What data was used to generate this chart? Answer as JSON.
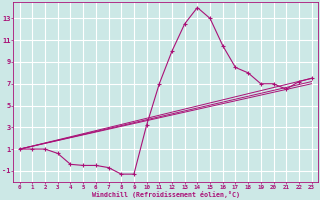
{
  "xlabel": "Windchill (Refroidissement éolien,°C)",
  "bg_color": "#cce8e6",
  "line_color": "#aa1177",
  "grid_color": "#ffffff",
  "xlim": [
    -0.5,
    23.5
  ],
  "ylim": [
    -2.0,
    14.5
  ],
  "xticks": [
    0,
    1,
    2,
    3,
    4,
    5,
    6,
    7,
    8,
    9,
    10,
    11,
    12,
    13,
    14,
    15,
    16,
    17,
    18,
    19,
    20,
    21,
    22,
    23
  ],
  "yticks": [
    -1,
    1,
    3,
    5,
    7,
    9,
    11,
    13
  ],
  "series": [
    [
      0,
      1
    ],
    [
      1,
      1
    ],
    [
      2,
      1
    ],
    [
      3,
      0.6
    ],
    [
      4,
      -0.4
    ],
    [
      5,
      -0.5
    ],
    [
      6,
      -0.5
    ],
    [
      7,
      -0.7
    ],
    [
      8,
      -1.3
    ],
    [
      9,
      -1.3
    ],
    [
      10,
      3.2
    ],
    [
      11,
      7.0
    ],
    [
      12,
      10.0
    ],
    [
      13,
      12.5
    ],
    [
      14,
      14.0
    ],
    [
      15,
      13.0
    ],
    [
      16,
      10.5
    ],
    [
      17,
      8.5
    ],
    [
      18,
      8.0
    ],
    [
      19,
      7.0
    ],
    [
      20,
      7.0
    ],
    [
      21,
      6.5
    ],
    [
      22,
      7.2
    ],
    [
      23,
      7.5
    ]
  ],
  "line2": [
    [
      0,
      1.0
    ],
    [
      23,
      7.5
    ]
  ],
  "line3": [
    [
      0,
      1.0
    ],
    [
      23,
      7.2
    ]
  ],
  "line4": [
    [
      0,
      1.0
    ],
    [
      23,
      7.0
    ]
  ],
  "xlabel_fontsize": 4.8,
  "tick_fontsize_x": 4.2,
  "tick_fontsize_y": 5.0
}
